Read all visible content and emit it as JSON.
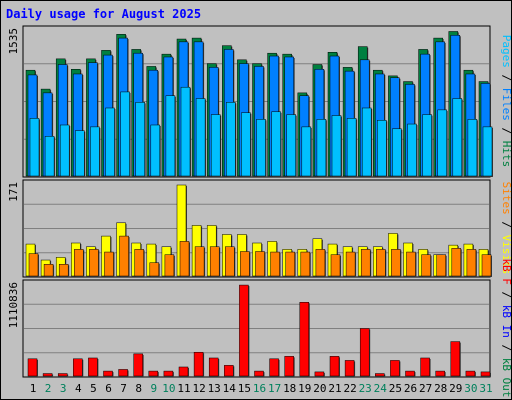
{
  "chart_data": {
    "type": "bar",
    "title": "Daily usage for August 2025",
    "categories": [
      "1",
      "2",
      "3",
      "4",
      "5",
      "6",
      "7",
      "8",
      "9",
      "10",
      "11",
      "12",
      "13",
      "14",
      "15",
      "16",
      "17",
      "18",
      "19",
      "20",
      "21",
      "22",
      "23",
      "24",
      "25",
      "26",
      "27",
      "28",
      "29",
      "30",
      "31"
    ],
    "weekend_days": [
      "2",
      "3",
      "9",
      "10",
      "16",
      "17",
      "23",
      "24",
      "30",
      "31"
    ],
    "panels": [
      {
        "id": "hits",
        "axis_label": "1535",
        "ymax": 1535,
        "series": [
          {
            "name": "Hits",
            "color": "#008040",
            "values": [
              1120,
              920,
              1240,
              1130,
              1240,
              1330,
              1500,
              1340,
              1160,
              1290,
              1450,
              1460,
              1190,
              1380,
              1230,
              1190,
              1300,
              1290,
              880,
              1180,
              1310,
              1150,
              1370,
              1120,
              1060,
              1000,
              1340,
              1460,
              1530,
              1120,
              1000
            ]
          },
          {
            "name": "Files",
            "color": "#0080ff",
            "values": [
              1070,
              880,
              1180,
              1080,
              1200,
              1280,
              1460,
              1300,
              1120,
              1260,
              1420,
              1420,
              1150,
              1340,
              1190,
              1160,
              1270,
              1260,
              850,
              1130,
              1270,
              1110,
              1230,
              1080,
              1040,
              970,
              1290,
              1420,
              1490,
              1080,
              980
            ]
          },
          {
            "name": "Pages",
            "color": "#00c0ff",
            "values": [
              610,
              420,
              540,
              480,
              520,
              720,
              890,
              780,
              540,
              850,
              940,
              820,
              650,
              780,
              670,
              600,
              680,
              650,
              520,
              600,
              640,
              610,
              720,
              590,
              500,
              550,
              650,
              700,
              820,
              600,
              520
            ]
          }
        ]
      },
      {
        "id": "visits",
        "axis_label": "171",
        "ymax": 171,
        "series": [
          {
            "name": "Visits",
            "color": "#ffff00",
            "values": [
              60,
              30,
              35,
              62,
              55,
              75,
              100,
              62,
              60,
              55,
              171,
              95,
              95,
              78,
              78,
              62,
              65,
              50,
              50,
              70,
              60,
              55,
              55,
              55,
              80,
              62,
              50,
              40,
              58,
              60,
              50
            ]
          },
          {
            "name": "Sites",
            "color": "#ff8000",
            "values": [
              42,
              22,
              22,
              50,
              50,
              45,
              75,
              50,
              25,
              40,
              65,
              55,
              55,
              55,
              46,
              46,
              45,
              45,
              45,
              50,
              40,
              45,
              50,
              50,
              50,
              45,
              40,
              40,
              52,
              50,
              40
            ]
          }
        ]
      },
      {
        "id": "kbytes",
        "axis_label": "1110836",
        "ymax": 1110836,
        "series": [
          {
            "name": "KBytes",
            "color": "#ff0000",
            "values": [
              210000,
              30000,
              30000,
              210000,
              220000,
              60000,
              80000,
              270000,
              60000,
              60000,
              110000,
              290000,
              220000,
              130000,
              1110000,
              60000,
              210000,
              240000,
              900000,
              50000,
              240000,
              190000,
              580000,
              30000,
              190000,
              60000,
              220000,
              60000,
              420000,
              60000,
              50000
            ]
          }
        ]
      }
    ],
    "right_legends": [
      {
        "panel": "hits",
        "parts": [
          {
            "text": "Pages",
            "color": "#00c0ff"
          },
          {
            "text": " / ",
            "color": "#000000"
          },
          {
            "text": "Files",
            "color": "#0080ff"
          },
          {
            "text": " / ",
            "color": "#000000"
          },
          {
            "text": "Hits",
            "color": "#008040"
          }
        ]
      },
      {
        "panel": "visits",
        "parts": [
          {
            "text": "Sites",
            "color": "#ff8000"
          },
          {
            "text": " / ",
            "color": "#000000"
          },
          {
            "text": "Visits",
            "color": "#ffff00"
          }
        ]
      },
      {
        "panel": "kbytes",
        "parts": [
          {
            "text": "kB F",
            "color": "#ff0000"
          },
          {
            "text": " / ",
            "color": "#000000"
          },
          {
            "text": "kB In",
            "color": "#0000ff"
          },
          {
            "text": " / ",
            "color": "#000000"
          },
          {
            "text": "kB Out",
            "color": "#008040"
          }
        ]
      }
    ],
    "colors": {
      "title": "#0000ff",
      "background": "#c0c0c0",
      "plot_area": "#c0c0c0",
      "gridline": "#808080",
      "weekday_label": "#000000",
      "weekend_label": "#00805c"
    }
  }
}
